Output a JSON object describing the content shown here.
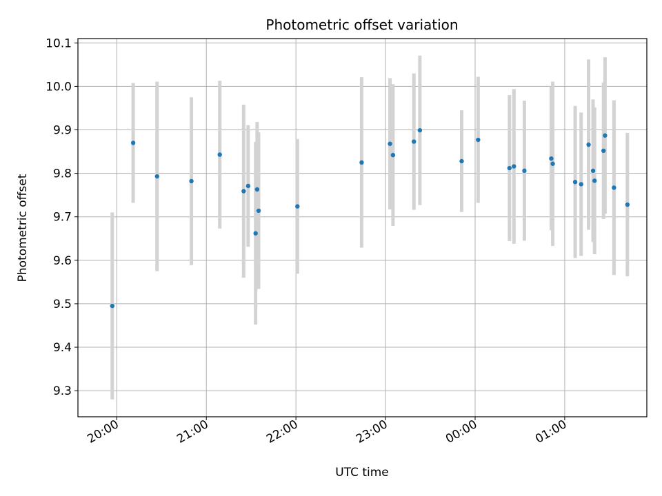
{
  "chart_data": {
    "type": "scatter",
    "title": "Photometric offset variation",
    "xlabel": "UTC time",
    "ylabel": "Photometric offset",
    "x_axis": {
      "kind": "time",
      "start": "19:34",
      "end": "01:55",
      "tick_labels": [
        "20:00",
        "21:00",
        "22:00",
        "23:00",
        "00:00",
        "01:00"
      ]
    },
    "ylim": [
      9.24,
      10.11
    ],
    "y_ticks": [
      "9.3",
      "9.4",
      "9.5",
      "9.6",
      "9.7",
      "9.8",
      "9.9",
      "10.0",
      "10.1"
    ],
    "grid": true,
    "colors": {
      "points": "#1f77b4",
      "error_bars": "#d3d3d3"
    },
    "series": [
      {
        "points": [
          {
            "x": "19:57",
            "y": 9.495,
            "err": 0.215
          },
          {
            "x": "20:11",
            "y": 9.87,
            "err": 0.138
          },
          {
            "x": "20:27",
            "y": 9.793,
            "err": 0.218
          },
          {
            "x": "20:50",
            "y": 9.782,
            "err": 0.193
          },
          {
            "x": "21:09",
            "y": 9.843,
            "err": 0.17
          },
          {
            "x": "21:25",
            "y": 9.759,
            "err": 0.199
          },
          {
            "x": "21:28",
            "y": 9.771,
            "err": 0.14
          },
          {
            "x": "21:33",
            "y": 9.662,
            "err": 0.21
          },
          {
            "x": "21:34",
            "y": 9.763,
            "err": 0.155
          },
          {
            "x": "21:35",
            "y": 9.714,
            "err": 0.18
          },
          {
            "x": "22:01",
            "y": 9.724,
            "err": 0.155
          },
          {
            "x": "22:44",
            "y": 9.825,
            "err": 0.196
          },
          {
            "x": "23:03",
            "y": 9.868,
            "err": 0.151
          },
          {
            "x": "23:05",
            "y": 9.842,
            "err": 0.163
          },
          {
            "x": "23:19",
            "y": 9.873,
            "err": 0.157
          },
          {
            "x": "23:23",
            "y": 9.899,
            "err": 0.172
          },
          {
            "x": "23:51",
            "y": 9.828,
            "err": 0.117
          },
          {
            "x": "00:02",
            "y": 9.877,
            "err": 0.145
          },
          {
            "x": "00:23",
            "y": 9.812,
            "err": 0.168
          },
          {
            "x": "00:26",
            "y": 9.816,
            "err": 0.178
          },
          {
            "x": "00:33",
            "y": 9.806,
            "err": 0.161
          },
          {
            "x": "00:51",
            "y": 9.834,
            "err": 0.165
          },
          {
            "x": "00:52",
            "y": 9.822,
            "err": 0.189
          },
          {
            "x": "01:07",
            "y": 9.78,
            "err": 0.175
          },
          {
            "x": "01:11",
            "y": 9.775,
            "err": 0.165
          },
          {
            "x": "01:16",
            "y": 9.866,
            "err": 0.196
          },
          {
            "x": "01:19",
            "y": 9.806,
            "err": 0.164
          },
          {
            "x": "01:20",
            "y": 9.783,
            "err": 0.169
          },
          {
            "x": "01:26",
            "y": 9.852,
            "err": 0.157
          },
          {
            "x": "01:27",
            "y": 9.887,
            "err": 0.18
          },
          {
            "x": "01:33",
            "y": 9.767,
            "err": 0.201
          },
          {
            "x": "01:42",
            "y": 9.728,
            "err": 0.165
          }
        ]
      }
    ]
  }
}
